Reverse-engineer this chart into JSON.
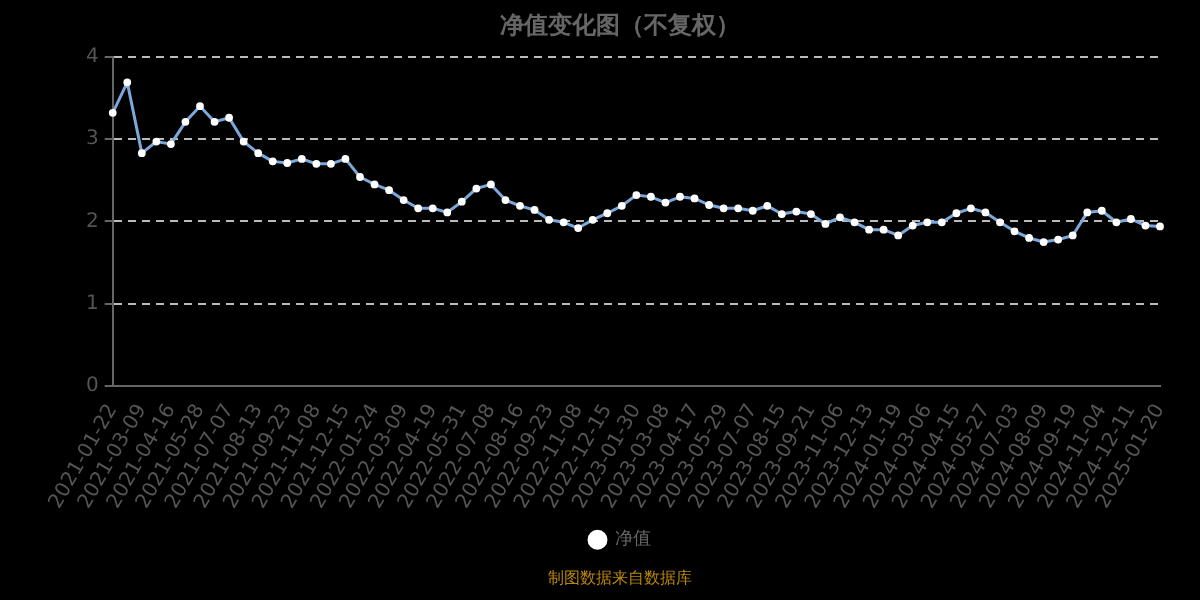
{
  "chart_data": {
    "type": "line",
    "title": "净值变化图（不复权）",
    "categories": [
      "2021-01-22",
      null,
      "2021-03-09",
      null,
      "2021-04-16",
      null,
      "2021-05-28",
      null,
      "2021-07-07",
      null,
      "2021-08-13",
      null,
      "2021-09-23",
      null,
      "2021-11-08",
      null,
      "2021-12-15",
      null,
      "2022-01-24",
      null,
      "2022-03-09",
      null,
      "2022-04-19",
      null,
      "2022-05-31",
      null,
      "2022-07-08",
      null,
      "2022-08-16",
      null,
      "2022-09-23",
      null,
      "2022-11-08",
      null,
      "2022-12-15",
      null,
      "2023-01-30",
      null,
      "2023-03-08",
      null,
      "2023-04-17",
      null,
      "2023-05-29",
      null,
      "2023-07-07",
      null,
      "2023-08-15",
      null,
      "2023-09-21",
      null,
      "2023-11-06",
      null,
      "2023-12-13",
      null,
      "2024-01-19",
      null,
      "2024-03-06",
      null,
      "2024-04-15",
      null,
      "2024-05-27",
      null,
      "2024-07-03",
      null,
      "2024-08-09",
      null,
      "2024-09-19",
      null,
      "2024-11-04",
      null,
      "2024-12-11",
      null,
      "2025-01-20"
    ],
    "series": [
      {
        "name": "净值",
        "color": "#7ba7d9",
        "values": [
          3.32,
          3.69,
          2.83,
          2.97,
          2.94,
          3.21,
          3.4,
          3.21,
          3.26,
          2.97,
          2.83,
          2.73,
          2.71,
          2.76,
          2.7,
          2.7,
          2.76,
          2.54,
          2.45,
          2.38,
          2.26,
          2.16,
          2.16,
          2.11,
          2.24,
          2.4,
          2.45,
          2.26,
          2.19,
          2.14,
          2.02,
          1.99,
          1.92,
          2.02,
          2.1,
          2.19,
          2.32,
          2.3,
          2.23,
          2.3,
          2.28,
          2.2,
          2.16,
          2.16,
          2.13,
          2.19,
          2.09,
          2.12,
          2.09,
          1.97,
          2.05,
          1.99,
          1.9,
          1.9,
          1.83,
          1.95,
          1.99,
          1.99,
          2.1,
          2.16,
          2.11,
          1.99,
          1.88,
          1.8,
          1.75,
          1.78,
          1.83,
          2.11,
          2.13,
          1.99,
          2.03,
          1.95,
          1.94
        ]
      }
    ],
    "ylim": [
      0,
      4
    ],
    "yticks": [
      0,
      1,
      2,
      3,
      4
    ],
    "grid": "y",
    "legend": "bottom",
    "marker": "circle",
    "line_style": "solid",
    "annotations": [
      "制图数据来自数据库"
    ]
  }
}
